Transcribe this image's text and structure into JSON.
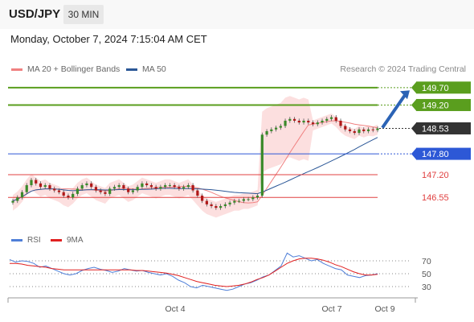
{
  "header": {
    "symbol": "USD/JPY",
    "timeframe": "30 MIN"
  },
  "datetime": "Monday, October 7, 2024 7:15:04 AM CET",
  "legend": {
    "ma20": {
      "label": "MA 20 + Bollinger Bands",
      "color": "#f08080"
    },
    "ma50": {
      "label": "MA 50",
      "color": "#2b5797"
    }
  },
  "credit": "Research © 2024 Trading Central",
  "rsi_legend": {
    "rsi": {
      "label": "RSI",
      "color": "#4f7fd8"
    },
    "ma9": {
      "label": "9MA",
      "color": "#e02020"
    }
  },
  "chart_data": [
    {
      "type": "candlestick",
      "y_range": [
        145.7,
        149.95
      ],
      "price_levels": [
        {
          "value": 149.7,
          "label": "149.70",
          "color": "#5a9e1e"
        },
        {
          "value": 149.2,
          "label": "149.20",
          "color": "#5a9e1e"
        },
        {
          "value": 148.53,
          "label": "148.53",
          "color": "#333333"
        },
        {
          "value": 147.8,
          "label": "147.80",
          "color": "#2d58d6"
        },
        {
          "value": 147.2,
          "label": "147.20",
          "color": "#e04040"
        },
        {
          "value": 146.55,
          "label": "146.55",
          "color": "#e04040"
        }
      ],
      "x_labels": [
        "Oct 4",
        "Oct 7",
        "Oct 9"
      ],
      "close_series": [
        146.45,
        146.55,
        146.7,
        146.9,
        147.05,
        146.95,
        146.85,
        146.9,
        146.8,
        146.75,
        146.7,
        146.6,
        146.55,
        146.65,
        146.8,
        146.9,
        146.95,
        146.85,
        146.75,
        146.7,
        146.65,
        146.8,
        146.85,
        146.9,
        146.8,
        146.7,
        146.75,
        146.85,
        146.95,
        146.9,
        146.85,
        146.8,
        146.85,
        146.9,
        146.9,
        146.85,
        146.8,
        146.85,
        146.9,
        146.75,
        146.6,
        146.45,
        146.35,
        146.3,
        146.25,
        146.3,
        146.35,
        146.4,
        146.45,
        146.45,
        146.5,
        146.5,
        146.55,
        146.6,
        148.35,
        148.45,
        148.5,
        148.55,
        148.6,
        148.75,
        148.8,
        148.75,
        148.7,
        148.75,
        148.7,
        148.65,
        148.7,
        148.75,
        148.8,
        148.85,
        148.75,
        148.6,
        148.5,
        148.45,
        148.4,
        148.5,
        148.45,
        148.5,
        148.48,
        148.53
      ]
    },
    {
      "type": "line",
      "name": "RSI",
      "y_ticks": [
        70,
        50,
        30
      ],
      "y_range": [
        15,
        85
      ],
      "series": [
        {
          "name": "RSI",
          "color": "#4f7fd8",
          "values": [
            72,
            68,
            70,
            69,
            66,
            60,
            62,
            58,
            54,
            50,
            48,
            50,
            55,
            58,
            60,
            57,
            55,
            52,
            54,
            58,
            56,
            54,
            55,
            52,
            50,
            48,
            50,
            46,
            40,
            36,
            30,
            28,
            32,
            30,
            28,
            26,
            24,
            26,
            30,
            34,
            36,
            40,
            45,
            48,
            55,
            62,
            82,
            76,
            78,
            74,
            70,
            72,
            66,
            62,
            58,
            56,
            48,
            46,
            44,
            47,
            48,
            50
          ]
        },
        {
          "name": "9MA",
          "color": "#e02020",
          "values": [
            66,
            66,
            65,
            63,
            62,
            61,
            60,
            58,
            57,
            56,
            56,
            56,
            56,
            56,
            56,
            56,
            56,
            56,
            56,
            56,
            56,
            55,
            55,
            54,
            53,
            52,
            51,
            49,
            47,
            44,
            41,
            38,
            36,
            34,
            32,
            31,
            30,
            31,
            32,
            34,
            37,
            41,
            44,
            48,
            54,
            60,
            66,
            70,
            73,
            74,
            74,
            73,
            71,
            68,
            64,
            61,
            57,
            53,
            50,
            48,
            48,
            49
          ]
        }
      ]
    }
  ]
}
